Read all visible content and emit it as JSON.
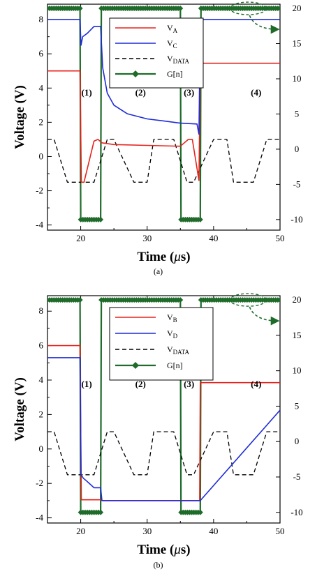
{
  "chart_data": [
    {
      "type": "line",
      "caption": "(a)",
      "xlabel_main": "Time (",
      "xlabel_mu": "μ",
      "xlabel_end": "s)",
      "ylabel": "Voltage (V)",
      "xlim": [
        15,
        50
      ],
      "ylim_left": [
        -4.3,
        8.9
      ],
      "ylim_right": [
        -11.5,
        20.6
      ],
      "xticks": [
        "20",
        "30",
        "40",
        "50"
      ],
      "yticks_left": [
        "-4",
        "-2",
        "0",
        "2",
        "4",
        "6",
        "8"
      ],
      "yticks_right": [
        "-10",
        "-5",
        "0",
        "5",
        "10",
        "15",
        "20"
      ],
      "phases": [
        "(1)",
        "(2)",
        "(3)",
        "(4)"
      ],
      "legend": [
        {
          "base": "V",
          "sub": "A",
          "color": "#e8221c",
          "style": "solid"
        },
        {
          "base": "V",
          "sub": "C",
          "color": "#1d2bd6",
          "style": "solid"
        },
        {
          "base": "V",
          "sub": "DATA",
          "color": "#000000",
          "style": "dashed"
        },
        {
          "base": "G[n]",
          "sub": "",
          "color": "#1f6b2a",
          "style": "diamond"
        }
      ],
      "series": [
        {
          "name": "VA",
          "axis": "left",
          "color": "#e8221c",
          "style": "solid",
          "x": [
            15,
            19.9,
            20.1,
            20.5,
            22.0,
            22.6,
            23.2,
            25,
            30,
            35,
            36.2,
            36.8,
            37.8,
            38.0,
            50
          ],
          "y": [
            5.0,
            5.0,
            -1.5,
            -1.5,
            0.9,
            1.0,
            0.8,
            0.7,
            0.65,
            0.6,
            1.0,
            1.0,
            -1.4,
            5.45,
            5.45
          ]
        },
        {
          "name": "VC",
          "axis": "left",
          "color": "#1d2bd6",
          "style": "solid",
          "x": [
            15,
            19.9,
            20.05,
            20.3,
            21.0,
            22.0,
            22.8,
            23.0,
            23.3,
            24,
            25,
            27,
            30,
            33,
            35,
            37.5,
            37.8,
            38.0,
            50
          ],
          "y": [
            8.0,
            8.0,
            6.5,
            7.0,
            7.2,
            7.6,
            7.6,
            7.6,
            5.2,
            3.7,
            3.0,
            2.5,
            2.2,
            2.05,
            1.95,
            1.9,
            1.3,
            8.0,
            8.0
          ]
        },
        {
          "name": "VDATA",
          "axis": "left",
          "color": "#000000",
          "style": "dashed",
          "x": [
            15,
            16,
            18,
            19,
            22,
            24,
            25,
            28,
            30,
            31,
            34,
            36,
            37,
            40,
            42,
            43,
            46,
            48,
            49,
            50
          ],
          "y": [
            1.0,
            1.0,
            -1.5,
            -1.5,
            -1.5,
            1.0,
            1.0,
            -1.5,
            -1.5,
            1.0,
            1.0,
            -1.5,
            -1.5,
            1.0,
            1.0,
            -1.5,
            -1.5,
            1.0,
            1.0,
            1.0
          ]
        },
        {
          "name": "G[n]",
          "axis": "right",
          "color": "#1f6b2a",
          "style": "diamond",
          "x": [
            15,
            19.9,
            20.0,
            23.0,
            23.1,
            35.0,
            35.1,
            38.0,
            38.1,
            50
          ],
          "y": [
            20,
            20,
            -10,
            -10,
            20,
            20,
            -10,
            -10,
            20,
            20
          ]
        }
      ]
    },
    {
      "type": "line",
      "caption": "(b)",
      "xlabel_main": "Time (",
      "xlabel_mu": "μ",
      "xlabel_end": "s)",
      "ylabel": "Voltage (V)",
      "xlim": [
        15,
        50
      ],
      "ylim_left": [
        -4.3,
        8.9
      ],
      "ylim_right": [
        -11.5,
        20.6
      ],
      "xticks": [
        "20",
        "30",
        "40",
        "50"
      ],
      "yticks_left": [
        "-4",
        "-2",
        "0",
        "2",
        "4",
        "6",
        "8"
      ],
      "yticks_right": [
        "-10",
        "-5",
        "0",
        "5",
        "10",
        "15",
        "20"
      ],
      "phases": [
        "(1)",
        "(2)",
        "(3)",
        "(4)"
      ],
      "legend": [
        {
          "base": "V",
          "sub": "B",
          "color": "#e8221c",
          "style": "solid"
        },
        {
          "base": "V",
          "sub": "D",
          "color": "#1d2bd6",
          "style": "solid"
        },
        {
          "base": "V",
          "sub": "DATA",
          "color": "#000000",
          "style": "dashed"
        },
        {
          "base": "G[n]",
          "sub": "",
          "color": "#1f6b2a",
          "style": "diamond"
        }
      ],
      "series": [
        {
          "name": "VB",
          "axis": "left",
          "color": "#e8221c",
          "style": "solid",
          "x": [
            15,
            19.9,
            20.1,
            20.3,
            22.5,
            23.0,
            23.3,
            30,
            37.9,
            38.0,
            50
          ],
          "y": [
            6.0,
            6.0,
            -2.95,
            -2.95,
            -2.95,
            -2.95,
            -3.0,
            -3.0,
            -3.0,
            3.85,
            3.85
          ]
        },
        {
          "name": "VD",
          "axis": "left",
          "color": "#1d2bd6",
          "style": "solid",
          "x": [
            15,
            19.9,
            20.05,
            20.4,
            21.0,
            22.0,
            23.0,
            23.2,
            30,
            38.0,
            50
          ],
          "y": [
            5.3,
            5.3,
            -1.5,
            -1.7,
            -1.9,
            -2.25,
            -2.25,
            -3.0,
            -3.0,
            -3.0,
            2.25
          ]
        },
        {
          "name": "VDATA",
          "axis": "left",
          "color": "#000000",
          "style": "dashed",
          "x": [
            15,
            16,
            18,
            19,
            22,
            24,
            25,
            28,
            30,
            31,
            34,
            36,
            37,
            40,
            42,
            43,
            46,
            48,
            49,
            50
          ],
          "y": [
            1.0,
            1.0,
            -1.5,
            -1.5,
            -1.5,
            1.0,
            1.0,
            -1.5,
            -1.5,
            1.0,
            1.0,
            -1.5,
            -1.5,
            1.0,
            1.0,
            -1.5,
            -1.5,
            1.0,
            1.0,
            1.0
          ]
        },
        {
          "name": "G[n]",
          "axis": "right",
          "color": "#1f6b2a",
          "style": "diamond",
          "x": [
            15,
            19.9,
            20.0,
            23.0,
            23.1,
            35.0,
            35.1,
            38.0,
            38.1,
            50
          ],
          "y": [
            20,
            20,
            -10,
            -10,
            20,
            20,
            -10,
            -10,
            20,
            20
          ]
        }
      ]
    }
  ]
}
